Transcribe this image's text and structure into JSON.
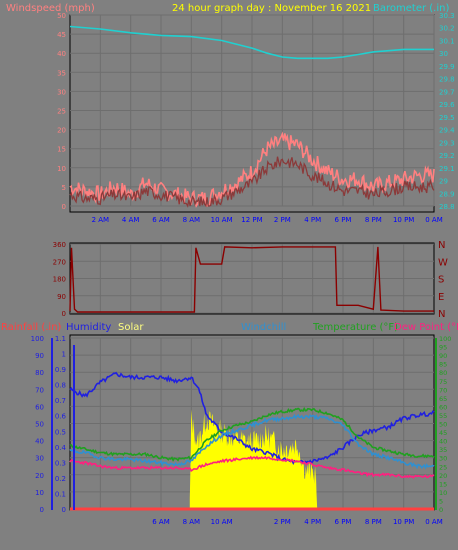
{
  "chart_data": [
    {
      "type": "line",
      "title": "24 hour graph day : November 16 2021",
      "ylabel_left": "Windspeed (mph)",
      "ylabel_right": "Barometer (.in)",
      "xticks": [
        "2 AM",
        "4 AM",
        "6 AM",
        "8 AM",
        "10 AM",
        "12 PM",
        "2 PM",
        "4 PM",
        "6 PM",
        "8 PM",
        "10 PM",
        "0 AM"
      ],
      "x_range_hours": [
        0,
        24
      ],
      "yticks_left": [
        "0",
        "5",
        "10",
        "15",
        "20",
        "25",
        "30",
        "35",
        "40",
        "45",
        "50"
      ],
      "ylim_left": [
        0,
        50
      ],
      "yticks_right": [
        "28.8",
        "28.9",
        "29",
        "29.1",
        "29.2",
        "29.3",
        "29.4",
        "29.5",
        "29.6",
        "29.7",
        "29.8",
        "29.9",
        "30",
        "30.1",
        "30.2",
        "30.3"
      ],
      "ylim_right": [
        28.8,
        30.3
      ],
      "colors": {
        "gust": "#ff8080",
        "speed": "#8b3a3a",
        "barometer": "#20d0d0",
        "title": "#ffff00"
      },
      "series": [
        {
          "name": "Windspeed (mph)",
          "role": "gust",
          "points": [
            [
              0,
              5
            ],
            [
              1,
              4
            ],
            [
              2,
              3
            ],
            [
              3,
              5
            ],
            [
              4,
              3
            ],
            [
              5,
              6
            ],
            [
              6,
              4
            ],
            [
              7,
              3
            ],
            [
              8,
              2
            ],
            [
              9,
              2
            ],
            [
              10,
              4
            ],
            [
              11,
              6
            ],
            [
              12,
              9
            ],
            [
              13,
              15
            ],
            [
              14,
              17
            ],
            [
              15,
              16
            ],
            [
              16,
              12
            ],
            [
              17,
              9
            ],
            [
              18,
              7
            ],
            [
              19,
              7
            ],
            [
              20,
              5
            ],
            [
              21,
              6
            ],
            [
              22,
              7
            ],
            [
              23,
              8
            ],
            [
              24,
              8
            ]
          ]
        },
        {
          "name": "Windspeed (mph)",
          "role": "speed",
          "points": [
            [
              0,
              3
            ],
            [
              1,
              2
            ],
            [
              2,
              2
            ],
            [
              3,
              3
            ],
            [
              4,
              2
            ],
            [
              5,
              4
            ],
            [
              6,
              3
            ],
            [
              7,
              2
            ],
            [
              8,
              1
            ],
            [
              9,
              1
            ],
            [
              10,
              2
            ],
            [
              11,
              4
            ],
            [
              12,
              6
            ],
            [
              13,
              10
            ],
            [
              14,
              12
            ],
            [
              15,
              11
            ],
            [
              16,
              8
            ],
            [
              17,
              6
            ],
            [
              18,
              4
            ],
            [
              19,
              4
            ],
            [
              20,
              3
            ],
            [
              21,
              4
            ],
            [
              22,
              5
            ],
            [
              23,
              5
            ],
            [
              24,
              5
            ]
          ]
        },
        {
          "name": "Barometer (.in)",
          "role": "barometer",
          "points": [
            [
              0,
              30.21
            ],
            [
              2,
              30.19
            ],
            [
              4,
              30.16
            ],
            [
              6,
              30.14
            ],
            [
              8,
              30.13
            ],
            [
              10,
              30.1
            ],
            [
              12,
              30.04
            ],
            [
              13,
              30.0
            ],
            [
              14,
              29.97
            ],
            [
              15,
              29.96
            ],
            [
              16,
              29.96
            ],
            [
              17,
              29.96
            ],
            [
              18,
              29.97
            ],
            [
              19,
              29.99
            ],
            [
              20,
              30.01
            ],
            [
              21,
              30.02
            ],
            [
              22,
              30.03
            ],
            [
              23,
              30.03
            ],
            [
              24,
              30.03
            ]
          ]
        }
      ]
    },
    {
      "type": "line",
      "ylabel_right": [
        "N",
        "W",
        "S",
        "E",
        "N"
      ],
      "yticks_left": [
        "0",
        "90",
        "180",
        "270",
        "360"
      ],
      "ylim": [
        0,
        360
      ],
      "color": "#8b0000",
      "series": [
        {
          "name": "Wind direction",
          "points": [
            [
              0,
              10
            ],
            [
              0.1,
              340
            ],
            [
              0.3,
              20
            ],
            [
              0.5,
              5
            ],
            [
              6,
              5
            ],
            [
              8.2,
              5
            ],
            [
              8.3,
              340
            ],
            [
              8.6,
              255
            ],
            [
              10,
              255
            ],
            [
              10.2,
              345
            ],
            [
              12,
              340
            ],
            [
              14,
              345
            ],
            [
              16,
              345
            ],
            [
              17.5,
              345
            ],
            [
              17.6,
              40
            ],
            [
              19,
              40
            ],
            [
              20,
              20
            ],
            [
              20.3,
              345
            ],
            [
              20.5,
              15
            ],
            [
              22,
              10
            ],
            [
              24,
              10
            ]
          ]
        }
      ]
    },
    {
      "type": "line",
      "xticks": [
        "6 AM",
        "8 AM",
        "10 AM",
        "2 PM",
        "4 PM",
        "6 PM",
        "8 PM",
        "10 PM",
        "0 AM"
      ],
      "x_range_hours": [
        0,
        24
      ],
      "legend": [
        "Rainfall (.in)",
        "Humidity",
        "Solar",
        "Windchill",
        "Temperature (°F)",
        "Dew Point (°F)"
      ],
      "yticks_left_humidity": [
        "0",
        "10",
        "20",
        "30",
        "40",
        "50",
        "60",
        "70",
        "80",
        "90",
        "100"
      ],
      "ylim_humidity": [
        0,
        100
      ],
      "yticks_left_rain": [
        "0",
        "0.1",
        "0.2",
        "0.3",
        "0.4",
        "0.5",
        "0.6",
        "0.7",
        "0.8",
        "0.9",
        "1",
        "1.1"
      ],
      "ylim_rain": [
        0,
        1.1
      ],
      "yticks_right": [
        "0",
        "5",
        "10",
        "15",
        "20",
        "25",
        "30",
        "35",
        "40",
        "45",
        "50",
        "55",
        "60",
        "65",
        "70",
        "75",
        "80",
        "85",
        "90",
        "95",
        "100"
      ],
      "ylim_right": [
        0,
        100
      ],
      "colors": {
        "rainfall": "#ff4040",
        "humidity": "#2020e0",
        "solar": "#ffff00",
        "windchill": "#3090d0",
        "temperature": "#20a020",
        "dewpoint": "#ff2080"
      },
      "series": [
        {
          "name": "Humidity",
          "points": [
            [
              0,
              70
            ],
            [
              1,
              66
            ],
            [
              2,
              74
            ],
            [
              3,
              79
            ],
            [
              4,
              77
            ],
            [
              5,
              77
            ],
            [
              6,
              77
            ],
            [
              7,
              75
            ],
            [
              8,
              77
            ],
            [
              8.5,
              70
            ],
            [
              9,
              55
            ],
            [
              10,
              45
            ],
            [
              11,
              41
            ],
            [
              12,
              35
            ],
            [
              13,
              33
            ],
            [
              14,
              29
            ],
            [
              15,
              27
            ],
            [
              16,
              28
            ],
            [
              17,
              30
            ],
            [
              18,
              36
            ],
            [
              19,
              43
            ],
            [
              20,
              46
            ],
            [
              21,
              48
            ],
            [
              22,
              53
            ],
            [
              23,
              55
            ],
            [
              24,
              56
            ]
          ]
        },
        {
          "name": "Temperature (°F)",
          "points": [
            [
              0,
              37
            ],
            [
              1,
              35
            ],
            [
              2,
              33
            ],
            [
              3,
              32
            ],
            [
              4,
              32
            ],
            [
              5,
              32
            ],
            [
              6,
              30
            ],
            [
              7,
              29
            ],
            [
              8,
              30
            ],
            [
              9,
              40
            ],
            [
              10,
              46
            ],
            [
              11,
              49
            ],
            [
              12,
              51
            ],
            [
              13,
              55
            ],
            [
              14,
              57
            ],
            [
              15,
              58
            ],
            [
              16,
              58
            ],
            [
              17,
              56
            ],
            [
              18,
              52
            ],
            [
              19,
              42
            ],
            [
              20,
              36
            ],
            [
              21,
              34
            ],
            [
              22,
              32
            ],
            [
              23,
              31
            ],
            [
              24,
              31
            ]
          ]
        },
        {
          "name": "Windchill",
          "points": [
            [
              0,
              34
            ],
            [
              1,
              33
            ],
            [
              2,
              30
            ],
            [
              3,
              29
            ],
            [
              4,
              29
            ],
            [
              5,
              28
            ],
            [
              6,
              27
            ],
            [
              7,
              26
            ],
            [
              8,
              28
            ],
            [
              9,
              37
            ],
            [
              10,
              43
            ],
            [
              11,
              46
            ],
            [
              12,
              49
            ],
            [
              13,
              52
            ],
            [
              14,
              53
            ],
            [
              15,
              54
            ],
            [
              16,
              54
            ],
            [
              17,
              53
            ],
            [
              18,
              49
            ],
            [
              19,
              38
            ],
            [
              20,
              32
            ],
            [
              21,
              30
            ],
            [
              22,
              27
            ],
            [
              23,
              25
            ],
            [
              24,
              25
            ]
          ]
        },
        {
          "name": "Dew Point (°F)",
          "points": [
            [
              0,
              28
            ],
            [
              1,
              27
            ],
            [
              2,
              25
            ],
            [
              3,
              24
            ],
            [
              4,
              24
            ],
            [
              5,
              24
            ],
            [
              6,
              24
            ],
            [
              7,
              24
            ],
            [
              8,
              23
            ],
            [
              9,
              26
            ],
            [
              10,
              28
            ],
            [
              11,
              29
            ],
            [
              12,
              30
            ],
            [
              13,
              30
            ],
            [
              14,
              29
            ],
            [
              15,
              28
            ],
            [
              16,
              26
            ],
            [
              17,
              24
            ],
            [
              18,
              23
            ],
            [
              19,
              21
            ],
            [
              20,
              20
            ],
            [
              21,
              20
            ],
            [
              22,
              19
            ],
            [
              23,
              19
            ],
            [
              24,
              19
            ]
          ]
        },
        {
          "name": "Solar",
          "points": [
            [
              7.9,
              0
            ],
            [
              8,
              50
            ],
            [
              8.4,
              35
            ],
            [
              9,
              50
            ],
            [
              10,
              42
            ],
            [
              11,
              38
            ],
            [
              12,
              36
            ],
            [
              13,
              40
            ],
            [
              14,
              32
            ],
            [
              15,
              35
            ],
            [
              15.5,
              20
            ],
            [
              16.2,
              18
            ],
            [
              16.3,
              0
            ],
            [
              24,
              0
            ]
          ]
        },
        {
          "name": "Rainfall (.in)",
          "points": [
            [
              0,
              0
            ],
            [
              24,
              0
            ]
          ]
        }
      ]
    }
  ]
}
